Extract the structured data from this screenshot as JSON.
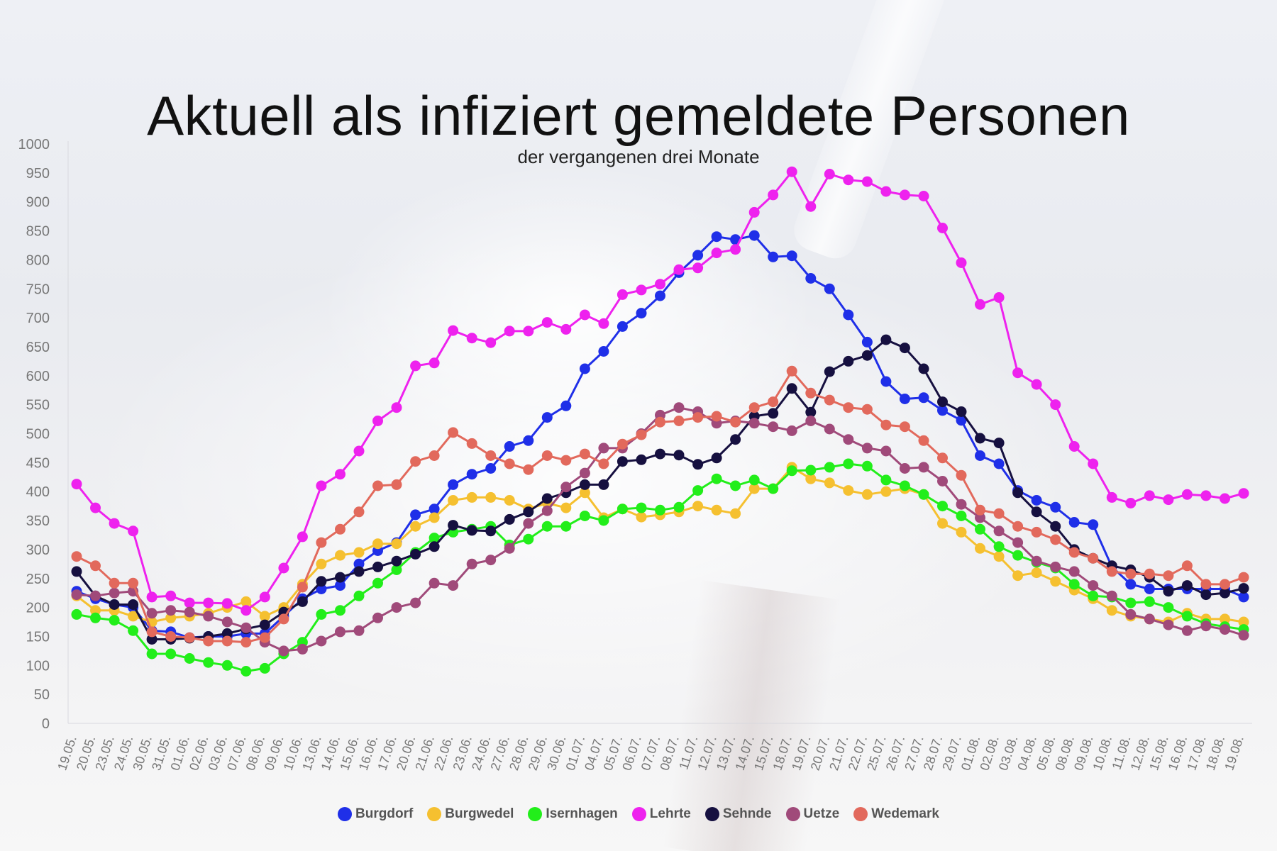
{
  "chart_data": {
    "type": "line",
    "title": "Aktuell als infiziert gemeldete Personen",
    "subtitle": "der vergangenen drei Monate",
    "xlabel": "",
    "ylabel": "",
    "ylim": [
      0,
      1000
    ],
    "y_ticks": [
      0,
      50,
      100,
      150,
      200,
      250,
      300,
      350,
      400,
      450,
      500,
      550,
      600,
      650,
      700,
      750,
      800,
      850,
      900,
      950,
      1000
    ],
    "legend_position": "bottom-center",
    "grid": false,
    "x": [
      "19.05.",
      "20.05.",
      "23.05.",
      "24.05.",
      "30.05.",
      "31.05.",
      "01.06.",
      "02.06.",
      "03.06.",
      "07.06.",
      "08.06.",
      "09.06.",
      "10.06.",
      "13.06.",
      "14.06.",
      "15.06.",
      "16.06.",
      "17.06.",
      "20.06.",
      "21.06.",
      "22.06.",
      "23.06.",
      "24.06.",
      "27.06.",
      "28.06.",
      "29.06.",
      "30.06.",
      "01.07.",
      "04.07.",
      "05.07.",
      "06.07.",
      "07.07.",
      "08.07.",
      "11.07.",
      "12.07.",
      "13.07.",
      "14.07.",
      "15.07.",
      "18.07.",
      "19.07.",
      "20.07.",
      "21.07.",
      "22.07.",
      "25.07.",
      "26.07.",
      "27.07.",
      "28.07.",
      "29.07.",
      "01.08.",
      "02.08.",
      "03.08.",
      "04.08.",
      "05.08.",
      "08.08.",
      "09.08.",
      "10.08.",
      "11.08.",
      "12.08.",
      "15.08.",
      "16.08.",
      "17.08.",
      "18.08.",
      "19.08."
    ],
    "series": [
      {
        "name": "Burgdorf",
        "color": "#1f2fe8",
        "values": [
          228,
          215,
          205,
          200,
          160,
          158,
          148,
          150,
          150,
          155,
          155,
          185,
          215,
          232,
          238,
          275,
          298,
          312,
          360,
          370,
          412,
          430,
          440,
          478,
          488,
          528,
          548,
          612,
          642,
          685,
          708,
          738,
          778,
          808,
          840,
          835,
          842,
          805,
          807,
          768,
          750,
          705,
          658,
          590,
          560,
          562,
          540,
          523,
          462,
          448,
          402,
          385,
          373,
          347,
          343,
          270,
          240,
          232,
          232,
          232,
          232,
          232,
          218
        ]
      },
      {
        "name": "Burgwedel",
        "color": "#f5c030",
        "values": [
          220,
          195,
          195,
          185,
          175,
          182,
          185,
          190,
          200,
          210,
          185,
          200,
          240,
          275,
          290,
          295,
          310,
          310,
          340,
          355,
          385,
          390,
          390,
          385,
          370,
          380,
          372,
          398,
          355,
          370,
          356,
          360,
          365,
          375,
          368,
          362,
          405,
          405,
          442,
          422,
          415,
          402,
          395,
          400,
          405,
          395,
          345,
          330,
          302,
          288,
          255,
          260,
          245,
          230,
          215,
          195,
          185,
          180,
          175,
          190,
          180,
          180,
          175
        ]
      },
      {
        "name": "Isernhagen",
        "color": "#22ee1a",
        "values": [
          188,
          182,
          178,
          160,
          120,
          120,
          112,
          105,
          100,
          90,
          95,
          120,
          140,
          188,
          195,
          220,
          242,
          265,
          295,
          320,
          330,
          335,
          340,
          308,
          318,
          340,
          340,
          358,
          350,
          370,
          372,
          368,
          373,
          402,
          422,
          410,
          420,
          405,
          436,
          437,
          442,
          448,
          444,
          420,
          410,
          395,
          375,
          358,
          335,
          305,
          290,
          278,
          268,
          240,
          220,
          218,
          208,
          210,
          200,
          185,
          172,
          167,
          162
        ]
      },
      {
        "name": "Lehrte",
        "color": "#ee22ee",
        "values": [
          413,
          372,
          345,
          332,
          218,
          220,
          208,
          208,
          207,
          195,
          218,
          268,
          322,
          410,
          430,
          470,
          522,
          545,
          617,
          622,
          678,
          665,
          657,
          677,
          677,
          692,
          680,
          705,
          690,
          740,
          748,
          758,
          783,
          786,
          812,
          818,
          882,
          912,
          952,
          892,
          948,
          938,
          935,
          918,
          912,
          910,
          855,
          795,
          723,
          735,
          605,
          585,
          550,
          478,
          448,
          390,
          380,
          393,
          386,
          395,
          393,
          388,
          397
        ]
      },
      {
        "name": "Sehnde",
        "color": "#161040",
        "values": [
          262,
          220,
          205,
          205,
          145,
          145,
          147,
          150,
          155,
          163,
          170,
          192,
          210,
          245,
          252,
          262,
          270,
          280,
          292,
          305,
          342,
          333,
          332,
          352,
          365,
          388,
          398,
          412,
          412,
          452,
          455,
          465,
          463,
          447,
          458,
          490,
          530,
          535,
          578,
          537,
          607,
          625,
          635,
          662,
          648,
          612,
          555,
          538,
          492,
          484,
          398,
          365,
          340,
          300,
          285,
          272,
          265,
          252,
          228,
          238,
          222,
          225,
          233
        ]
      },
      {
        "name": "Uetze",
        "color": "#a04a7a",
        "values": [
          222,
          220,
          225,
          228,
          190,
          195,
          192,
          185,
          175,
          165,
          140,
          125,
          128,
          142,
          158,
          160,
          182,
          200,
          208,
          242,
          238,
          275,
          282,
          302,
          345,
          367,
          408,
          432,
          475,
          475,
          500,
          532,
          545,
          538,
          518,
          522,
          518,
          512,
          505,
          522,
          508,
          490,
          475,
          470,
          440,
          442,
          418,
          378,
          355,
          332,
          312,
          280,
          270,
          262,
          238,
          220,
          188,
          180,
          170,
          160,
          168,
          162,
          152
        ]
      },
      {
        "name": "Wedemark",
        "color": "#e2695c",
        "values": [
          288,
          272,
          242,
          242,
          158,
          150,
          148,
          142,
          142,
          140,
          148,
          180,
          235,
          312,
          335,
          365,
          410,
          412,
          452,
          462,
          502,
          483,
          462,
          448,
          438,
          462,
          454,
          465,
          448,
          482,
          498,
          520,
          522,
          528,
          530,
          520,
          545,
          555,
          608,
          570,
          558,
          545,
          542,
          515,
          512,
          488,
          458,
          428,
          368,
          362,
          340,
          330,
          317,
          295,
          285,
          262,
          258,
          258,
          255,
          272,
          240,
          240,
          252
        ]
      }
    ]
  }
}
